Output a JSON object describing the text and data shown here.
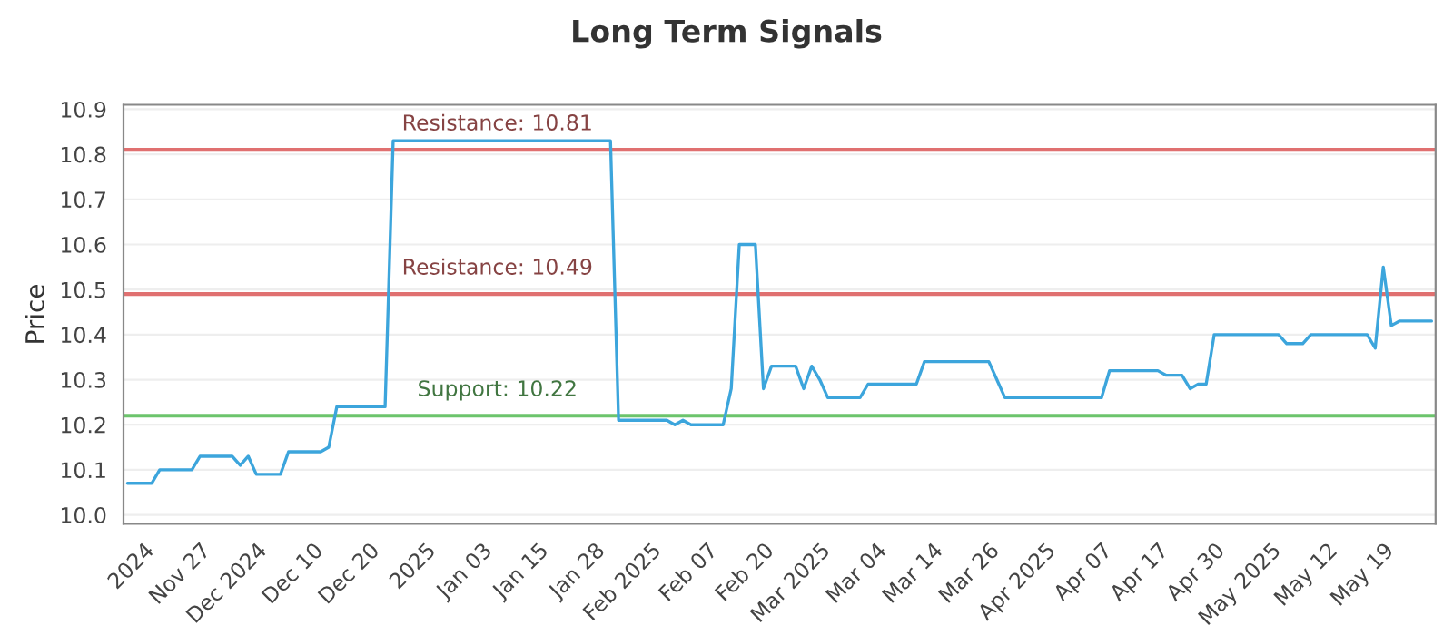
{
  "chart_data": {
    "type": "line",
    "title": "Long Term Signals",
    "ylabel": "Price",
    "categories": [
      null,
      null,
      "2024",
      null,
      null,
      null,
      null,
      null,
      null,
      "Nov 27",
      null,
      null,
      null,
      null,
      null,
      null,
      "Dec 2024",
      null,
      null,
      null,
      null,
      null,
      null,
      "Dec 10",
      null,
      null,
      null,
      null,
      null,
      null,
      "Dec 20",
      null,
      null,
      null,
      null,
      null,
      null,
      "2025",
      null,
      null,
      null,
      null,
      null,
      null,
      "Jan 03",
      null,
      null,
      null,
      null,
      null,
      null,
      "Jan 15",
      null,
      null,
      null,
      null,
      null,
      null,
      "Jan 28",
      null,
      null,
      null,
      null,
      null,
      null,
      "Feb 2025",
      null,
      null,
      null,
      null,
      null,
      null,
      "Feb 07",
      null,
      null,
      null,
      null,
      null,
      null,
      "Feb 20",
      null,
      null,
      null,
      null,
      null,
      null,
      "Mar 2025",
      null,
      null,
      null,
      null,
      null,
      null,
      "Mar 04",
      null,
      null,
      null,
      null,
      null,
      null,
      "Mar 14",
      null,
      null,
      null,
      null,
      null,
      null,
      "Mar 26",
      null,
      null,
      null,
      null,
      null,
      null,
      "Apr 2025",
      null,
      null,
      null,
      null,
      null,
      null,
      "Apr 07",
      null,
      null,
      null,
      null,
      null,
      null,
      "Apr 17",
      null,
      null,
      null,
      null,
      null,
      null,
      "Apr 30",
      null,
      null,
      null,
      null,
      null,
      null,
      "May 2025",
      null,
      null,
      null,
      null,
      null,
      null,
      "May 12",
      null,
      null,
      null,
      null,
      null,
      null,
      "May 19",
      null,
      null,
      null,
      null,
      null,
      null
    ],
    "series": [
      {
        "color": "#3ca5dc",
        "values": [
          10.07,
          10.07,
          10.07,
          10.07,
          10.1,
          10.1,
          10.1,
          10.1,
          10.1,
          10.13,
          10.13,
          10.13,
          10.13,
          10.13,
          10.11,
          10.13,
          10.09,
          10.09,
          10.09,
          10.09,
          10.14,
          10.14,
          10.14,
          10.14,
          10.14,
          10.15,
          10.24,
          10.24,
          10.24,
          10.24,
          10.24,
          10.24,
          10.24,
          10.83,
          10.83,
          10.83,
          10.83,
          10.83,
          10.83,
          10.83,
          10.83,
          10.83,
          10.83,
          10.83,
          10.83,
          10.83,
          10.83,
          10.83,
          10.83,
          10.83,
          10.83,
          10.83,
          10.83,
          10.83,
          10.83,
          10.83,
          10.83,
          10.83,
          10.83,
          10.83,
          10.83,
          10.21,
          10.21,
          10.21,
          10.21,
          10.21,
          10.21,
          10.21,
          10.2,
          10.21,
          10.2,
          10.2,
          10.2,
          10.2,
          10.2,
          10.28,
          10.6,
          10.6,
          10.6,
          10.28,
          10.33,
          10.33,
          10.33,
          10.33,
          10.28,
          10.33,
          10.3,
          10.26,
          10.26,
          10.26,
          10.26,
          10.26,
          10.29,
          10.29,
          10.29,
          10.29,
          10.29,
          10.29,
          10.29,
          10.34,
          10.34,
          10.34,
          10.34,
          10.34,
          10.34,
          10.34,
          10.34,
          10.34,
          10.3,
          10.26,
          10.26,
          10.26,
          10.26,
          10.26,
          10.26,
          10.26,
          10.26,
          10.26,
          10.26,
          10.26,
          10.26,
          10.26,
          10.32,
          10.32,
          10.32,
          10.32,
          10.32,
          10.32,
          10.32,
          10.31,
          10.31,
          10.31,
          10.28,
          10.29,
          10.29,
          10.4,
          10.4,
          10.4,
          10.4,
          10.4,
          10.4,
          10.4,
          10.4,
          10.4,
          10.38,
          10.38,
          10.38,
          10.4,
          10.4,
          10.4,
          10.4,
          10.4,
          10.4,
          10.4,
          10.4,
          10.37,
          10.55,
          10.42,
          10.43,
          10.43,
          10.43,
          10.43,
          10.43
        ]
      }
    ],
    "ylim": [
      9.98,
      10.91
    ],
    "yticks": [
      {
        "value": 10.0,
        "label": "10.0"
      },
      10.1,
      10.2,
      10.3,
      10.4,
      10.5,
      10.6,
      10.7,
      10.8,
      10.9
    ],
    "ref_lines": [
      {
        "axis": "y",
        "value": 10.81,
        "label": "Resistance: 10.81",
        "color": "#e07070"
      },
      {
        "axis": "y",
        "value": 10.49,
        "label": "Resistance: 10.49",
        "color": "#e07070"
      },
      {
        "axis": "y",
        "value": 10.22,
        "label": "Support: 10.22",
        "color": "#6cc46c"
      }
    ],
    "grid": "y",
    "legend": false
  }
}
